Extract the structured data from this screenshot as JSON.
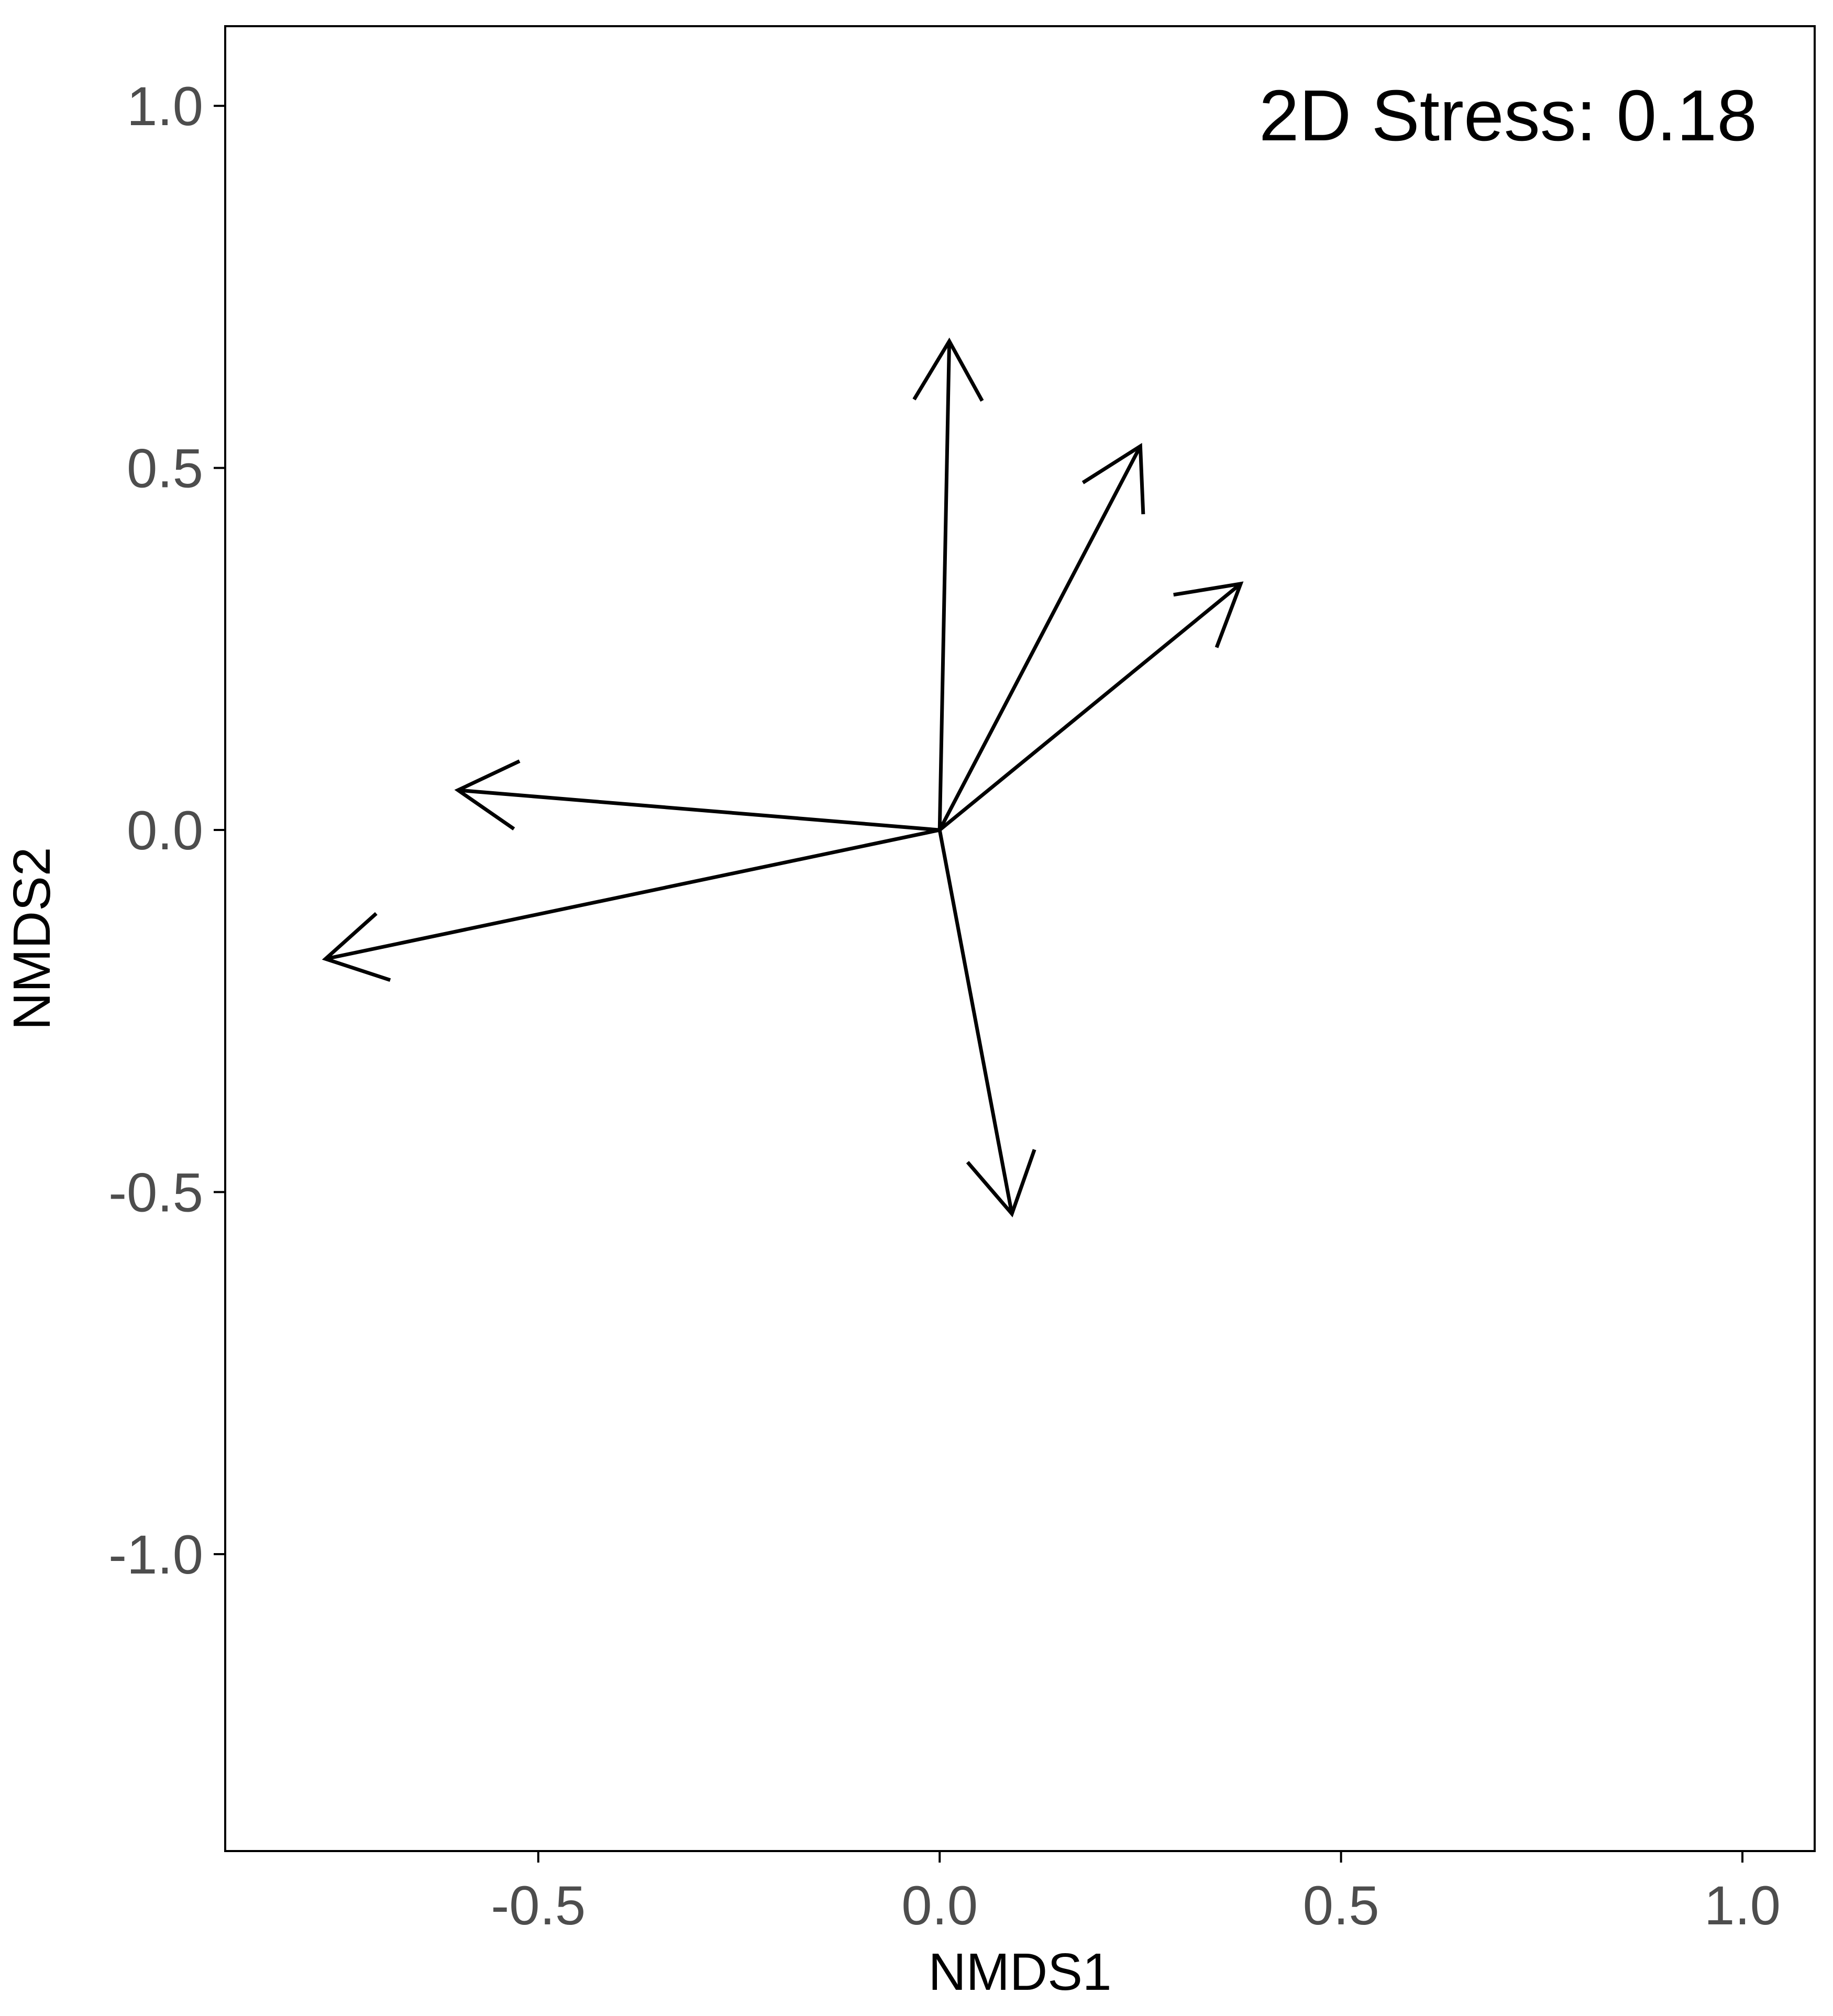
{
  "chart_data": {
    "type": "vector",
    "title": "",
    "xlabel": "NMDS1",
    "ylabel": "NMDS2",
    "xlim": [
      -0.89,
      1.09
    ],
    "ylim": [
      -1.41,
      1.11
    ],
    "x_ticks": [
      -0.5,
      0.0,
      0.5,
      1.0
    ],
    "x_tick_labels": [
      "-0.5",
      "0.0",
      "0.5",
      "1.0"
    ],
    "y_ticks": [
      -1.0,
      -0.5,
      0.0,
      0.5,
      1.0
    ],
    "y_tick_labels": [
      "-1.0",
      "-0.5",
      "0.0",
      "0.5",
      "1.0"
    ],
    "grid": false,
    "annotation": "2D Stress: 0.18",
    "origin": [
      0,
      0
    ],
    "vectors": [
      {
        "x": 0.012,
        "y": 0.675
      },
      {
        "x": 0.25,
        "y": 0.53
      },
      {
        "x": 0.375,
        "y": 0.34
      },
      {
        "x": -0.6,
        "y": 0.055
      },
      {
        "x": -0.765,
        "y": -0.178
      },
      {
        "x": 0.09,
        "y": -0.53
      }
    ],
    "colors": {
      "arrow": "#000000",
      "axis": "#000000",
      "tick_label": "#4d4d4d",
      "background": "#ffffff"
    }
  }
}
